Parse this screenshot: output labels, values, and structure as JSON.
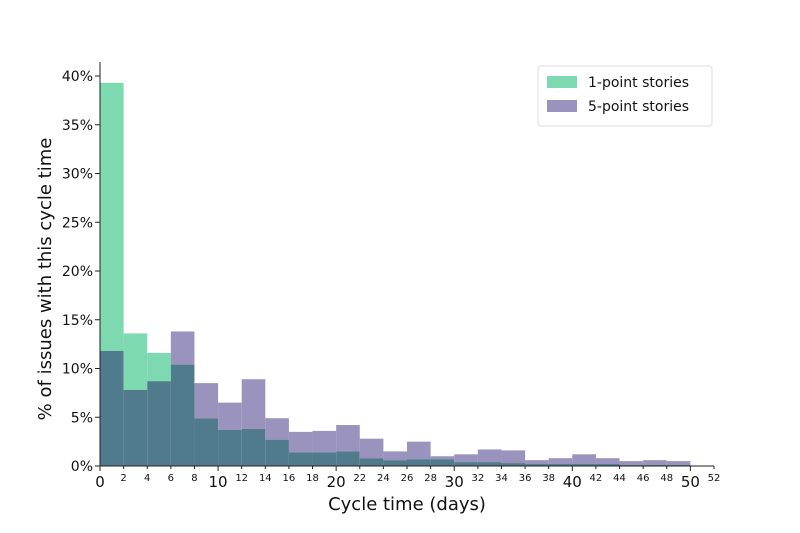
{
  "chart_data": {
    "type": "histogram",
    "xlabel": "Cycle time (days)",
    "ylabel": "% of issues with this cycle time",
    "xlim": [
      0,
      52
    ],
    "ylim": [
      0,
      40
    ],
    "bin_width": 2,
    "major_xticks": [
      0,
      10,
      20,
      30,
      40,
      50
    ],
    "minor_xticks": [
      2,
      4,
      6,
      8,
      12,
      14,
      16,
      18,
      22,
      24,
      26,
      28,
      32,
      34,
      36,
      38,
      42,
      44,
      46,
      48,
      52
    ],
    "yticks": [
      0,
      5,
      10,
      15,
      20,
      25,
      30,
      35,
      40
    ],
    "ytick_format": "%",
    "overlap_color": "#507b8c",
    "legend_position": "top-right",
    "series": [
      {
        "name": "1-point stories",
        "color": "#7dd9b0",
        "bins": [
          0,
          2,
          4,
          6,
          8,
          10,
          12,
          14,
          16,
          18,
          20,
          22,
          24,
          26,
          28,
          30,
          32,
          34,
          36,
          38,
          40,
          42,
          44,
          46,
          48
        ],
        "values": [
          39.3,
          13.6,
          11.6,
          10.4,
          4.9,
          3.7,
          3.8,
          2.7,
          1.4,
          1.4,
          1.5,
          0.8,
          0.6,
          0.7,
          0.7,
          0.4,
          0.4,
          0.3,
          0.2,
          0.2,
          0.2,
          0.2,
          0.1,
          0.1,
          0.1
        ]
      },
      {
        "name": "5-point stories",
        "color": "#9a93bd",
        "bins": [
          0,
          2,
          4,
          6,
          8,
          10,
          12,
          14,
          16,
          18,
          20,
          22,
          24,
          26,
          28,
          30,
          32,
          34,
          36,
          38,
          40,
          42,
          44,
          46,
          48
        ],
        "values": [
          11.8,
          7.8,
          8.7,
          13.8,
          8.5,
          6.5,
          8.9,
          4.9,
          3.5,
          3.6,
          4.2,
          2.8,
          1.5,
          2.5,
          1.0,
          1.2,
          1.7,
          1.6,
          0.6,
          0.8,
          1.2,
          0.8,
          0.5,
          0.6,
          0.5
        ]
      }
    ]
  }
}
